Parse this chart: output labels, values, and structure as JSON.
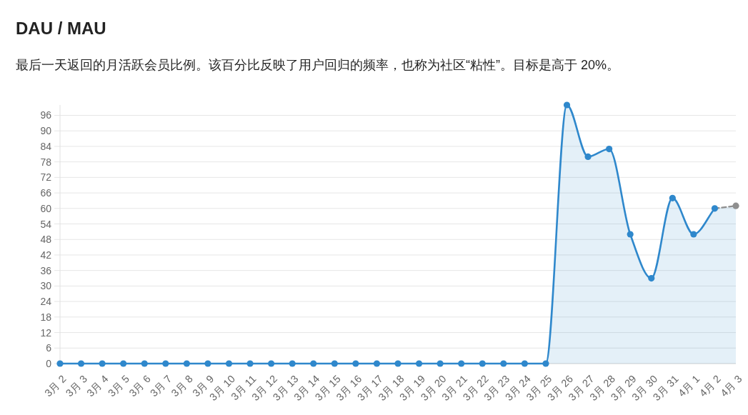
{
  "chart_data": {
    "type": "area",
    "title": "DAU / MAU",
    "subtitle": "最后一天返回的月活跃会员比例。该百分比反映了用户回归的频率，也称为社区“粘性”。目标是高于 20%。",
    "categories": [
      "3月 2",
      "3月 3",
      "3月 4",
      "3月 5",
      "3月 6",
      "3月 7",
      "3月 8",
      "3月 9",
      "3月 10",
      "3月 11",
      "3月 12",
      "3月 13",
      "3月 14",
      "3月 15",
      "3月 16",
      "3月 17",
      "3月 18",
      "3月 19",
      "3月 20",
      "3月 21",
      "3月 22",
      "3月 23",
      "3月 24",
      "3月 25",
      "3月 26",
      "3月 27",
      "3月 28",
      "3月 29",
      "3月 30",
      "3月 31",
      "4月 1",
      "4月 2",
      "4月 3"
    ],
    "series": [
      {
        "color": "#2f88cc",
        "values": [
          0,
          0,
          0,
          0,
          0,
          0,
          0,
          0,
          0,
          0,
          0,
          0,
          0,
          0,
          0,
          0,
          0,
          0,
          0,
          0,
          0,
          0,
          0,
          0,
          100,
          80,
          83,
          50,
          33,
          64,
          50,
          60,
          null
        ]
      },
      {
        "color": "#8f8f8f",
        "line_style": "dashed",
        "values": [
          null,
          null,
          null,
          null,
          null,
          null,
          null,
          null,
          null,
          null,
          null,
          null,
          null,
          null,
          null,
          null,
          null,
          null,
          null,
          null,
          null,
          null,
          null,
          null,
          null,
          null,
          null,
          null,
          null,
          null,
          null,
          60,
          61
        ]
      }
    ],
    "ylim": [
      0,
      100
    ],
    "yticks": [
      0,
      6,
      12,
      18,
      24,
      30,
      36,
      42,
      48,
      54,
      60,
      66,
      72,
      78,
      84,
      90,
      96
    ],
    "grid": "y",
    "marker": "circle"
  }
}
